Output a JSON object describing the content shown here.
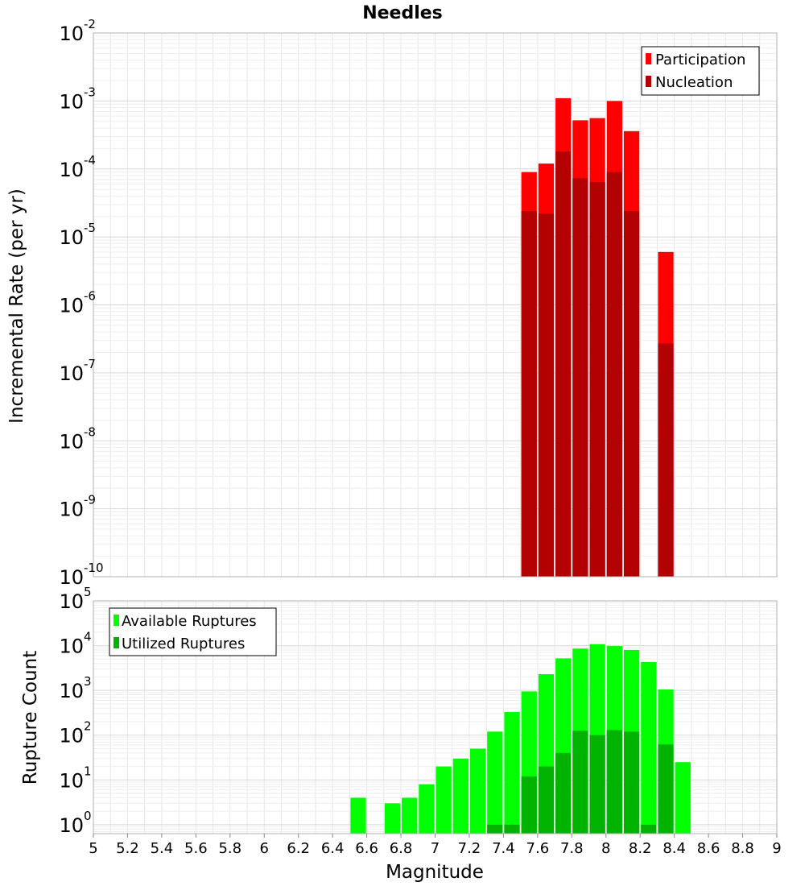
{
  "title": "Needles",
  "chart_data": [
    {
      "type": "bar",
      "scale": "log",
      "ylabel": "Incremental Rate (per yr)",
      "ylim_exp": [
        -10,
        -2
      ],
      "ytick_exponents": [
        "-10",
        "-9",
        "-8",
        "-7",
        "-6",
        "-5",
        "-4",
        "-3",
        "-2"
      ],
      "ytick_base": "10",
      "xlim": [
        5,
        9
      ],
      "bin_width": 0.1,
      "legend": [
        "Participation",
        "Nucleation"
      ],
      "legend_position": "top-right",
      "series": [
        {
          "name": "Participation",
          "color": "#ff0000",
          "bins": [
            {
              "m": 7.55,
              "v": 9e-05
            },
            {
              "m": 7.65,
              "v": 0.00012
            },
            {
              "m": 7.75,
              "v": 0.0011
            },
            {
              "m": 7.85,
              "v": 0.00052
            },
            {
              "m": 7.95,
              "v": 0.00056
            },
            {
              "m": 8.05,
              "v": 0.001
            },
            {
              "m": 8.15,
              "v": 0.00036
            },
            {
              "m": 8.35,
              "v": 6e-06
            }
          ]
        },
        {
          "name": "Nucleation",
          "color": "#b30000",
          "bins": [
            {
              "m": 7.55,
              "v": 2.4e-05
            },
            {
              "m": 7.65,
              "v": 2.2e-05
            },
            {
              "m": 7.75,
              "v": 0.00018
            },
            {
              "m": 7.85,
              "v": 7.3e-05
            },
            {
              "m": 7.95,
              "v": 6.4e-05
            },
            {
              "m": 8.05,
              "v": 9e-05
            },
            {
              "m": 8.15,
              "v": 2.4e-05
            },
            {
              "m": 8.35,
              "v": 2.7e-07
            }
          ]
        }
      ]
    },
    {
      "type": "bar",
      "scale": "log",
      "xlabel": "Magnitude",
      "ylabel": "Rupture Count",
      "ylim_exp": [
        -0.2,
        5
      ],
      "ytick_exponents": [
        "0",
        "1",
        "2",
        "3",
        "4",
        "5"
      ],
      "ytick_base": "10",
      "xlim": [
        5,
        9
      ],
      "xticks": [
        "5",
        "5.2",
        "5.4",
        "5.6",
        "5.8",
        "6",
        "6.2",
        "6.4",
        "6.6",
        "6.8",
        "7",
        "7.2",
        "7.4",
        "7.6",
        "7.8",
        "8",
        "8.2",
        "8.4",
        "8.6",
        "8.8",
        "9"
      ],
      "bin_width": 0.1,
      "legend": [
        "Available Ruptures",
        "Utilized Ruptures"
      ],
      "legend_position": "top-left",
      "series": [
        {
          "name": "Available Ruptures",
          "color": "#00ff00",
          "bins": [
            {
              "m": 6.55,
              "v": 4
            },
            {
              "m": 6.75,
              "v": 3
            },
            {
              "m": 6.85,
              "v": 4
            },
            {
              "m": 6.95,
              "v": 8
            },
            {
              "m": 7.05,
              "v": 20
            },
            {
              "m": 7.15,
              "v": 30
            },
            {
              "m": 7.25,
              "v": 50
            },
            {
              "m": 7.35,
              "v": 120
            },
            {
              "m": 7.45,
              "v": 330
            },
            {
              "m": 7.55,
              "v": 950
            },
            {
              "m": 7.65,
              "v": 2300
            },
            {
              "m": 7.75,
              "v": 5200
            },
            {
              "m": 7.85,
              "v": 8600
            },
            {
              "m": 7.95,
              "v": 10800
            },
            {
              "m": 8.05,
              "v": 9800
            },
            {
              "m": 8.15,
              "v": 8000
            },
            {
              "m": 8.25,
              "v": 4300
            },
            {
              "m": 8.35,
              "v": 1050
            },
            {
              "m": 8.45,
              "v": 25
            }
          ]
        },
        {
          "name": "Utilized Ruptures",
          "color": "#00b300",
          "bins": [
            {
              "m": 7.35,
              "v": 1
            },
            {
              "m": 7.45,
              "v": 1
            },
            {
              "m": 7.55,
              "v": 12
            },
            {
              "m": 7.65,
              "v": 20
            },
            {
              "m": 7.75,
              "v": 40
            },
            {
              "m": 7.85,
              "v": 125
            },
            {
              "m": 7.95,
              "v": 100
            },
            {
              "m": 8.05,
              "v": 130
            },
            {
              "m": 8.15,
              "v": 120
            },
            {
              "m": 8.25,
              "v": 1
            },
            {
              "m": 8.35,
              "v": 62
            }
          ]
        }
      ]
    }
  ]
}
